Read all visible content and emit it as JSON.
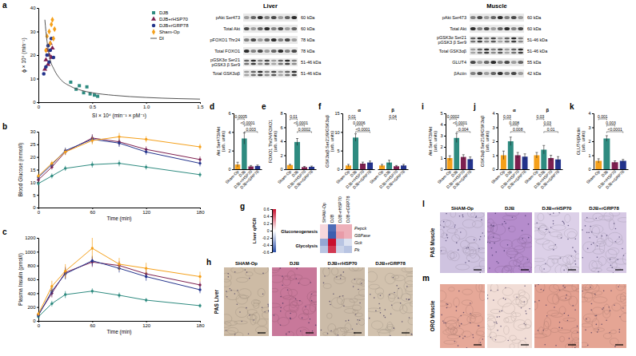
{
  "chart_data": [
    {
      "panel": "a",
      "type": "scatter",
      "x_label": "SI × 10⁴ (min⁻¹ × pM⁻¹)",
      "y_label": "ϕ × 10⁹ (min⁻¹)",
      "xlim": [
        0,
        1.5
      ],
      "xticks": [
        0,
        0.5,
        {
          "value": 1,
          "label": "1.0"
        },
        1.5
      ],
      "ylim": [
        0,
        40
      ],
      "yticks": [
        0,
        10,
        20,
        30,
        40
      ],
      "legend": "top-right",
      "series": [
        {
          "name": "DJB",
          "color": "#2e8b80",
          "marker": "square",
          "x": [
            0.3,
            0.35,
            0.38,
            0.42,
            0.45,
            0.48,
            0.52,
            0.55
          ],
          "values": [
            8.5,
            5.5,
            7,
            4,
            6.5,
            3.5,
            3,
            2.5
          ]
        },
        {
          "name": "DJB+rHSP70",
          "color": "#7d1f4f",
          "marker": "triangle",
          "x": [
            0.06,
            0.07,
            0.08,
            0.09,
            0.1,
            0.11,
            0.12,
            0.13
          ],
          "values": [
            14,
            18,
            22,
            16,
            20,
            25,
            19,
            23
          ]
        },
        {
          "name": "DJB+rGRP78",
          "color": "#23338c",
          "marker": "circle",
          "x": [
            0.05,
            0.07,
            0.08,
            0.09,
            0.1,
            0.11,
            0.12,
            0.14
          ],
          "values": [
            12,
            15,
            20,
            24,
            17,
            22,
            27,
            19
          ]
        },
        {
          "name": "Sham-Op",
          "color": "#f5a01a",
          "marker": "diamond",
          "x": [
            0.07,
            0.08,
            0.1,
            0.11,
            0.12,
            0.13,
            0.14,
            0.15
          ],
          "values": [
            22,
            28,
            30,
            25,
            33,
            35,
            27,
            31
          ]
        },
        {
          "name": "DI",
          "type": "line",
          "color": "#555555",
          "x": [
            0.06,
            0.07,
            0.1,
            0.15,
            0.2,
            0.3,
            0.4,
            0.5,
            0.7,
            1.0,
            1.3,
            1.5
          ],
          "values": [
            35,
            30,
            20,
            13.5,
            10,
            6.7,
            5,
            4,
            2.9,
            2,
            1.5,
            1.3
          ]
        }
      ]
    },
    {
      "panel": "b",
      "type": "line",
      "x_label": "Time (min)",
      "y_label": "Blood Glucose (mmol/l)",
      "x": [
        0,
        15,
        30,
        60,
        90,
        120,
        180
      ],
      "xlim": [
        0,
        180
      ],
      "xticks": [
        0,
        60,
        120,
        180
      ],
      "ylim": [
        0,
        30
      ],
      "yticks": [
        0,
        5,
        10,
        15,
        20,
        25,
        30
      ],
      "marker": "circle",
      "series": [
        {
          "color": "#2e8b80",
          "values": [
            9.5,
            12.5,
            15.5,
            17,
            17.5,
            16,
            13
          ],
          "errors": [
            0.8,
            1,
            1,
            1.2,
            1.2,
            1,
            1
          ]
        },
        {
          "color": "#7d1f4f",
          "values": [
            11,
            16,
            22,
            27.5,
            26,
            23,
            19
          ],
          "errors": [
            1,
            1,
            1.2,
            1.5,
            1.5,
            1.2,
            1.2
          ]
        },
        {
          "color": "#23338c",
          "values": [
            12,
            17,
            22.5,
            27,
            25.5,
            22,
            17.5
          ],
          "errors": [
            1,
            1,
            1.2,
            1.5,
            1.5,
            1.2,
            1.2
          ]
        },
        {
          "color": "#f5a01a",
          "values": [
            12.5,
            17.5,
            22,
            26.5,
            28,
            27,
            24
          ],
          "errors": [
            1,
            1,
            1.2,
            1.5,
            1.5,
            1.2,
            1.2
          ]
        }
      ]
    },
    {
      "panel": "c",
      "type": "line",
      "x_label": "Time (min)",
      "y_label": "Plasma Insulin (pmol/l)",
      "x": [
        0,
        15,
        30,
        60,
        90,
        120,
        180
      ],
      "xlim": [
        0,
        180
      ],
      "xticks": [
        0,
        60,
        120,
        180
      ],
      "ylim": [
        0,
        1200
      ],
      "yticks": [
        0,
        200,
        400,
        600,
        800,
        1000,
        1200
      ],
      "marker": "circle",
      "series": [
        {
          "color": "#2e8b80",
          "values": [
            60,
            250,
            380,
            430,
            370,
            300,
            220
          ],
          "errors": [
            20,
            40,
            50,
            40,
            40,
            30,
            30
          ]
        },
        {
          "color": "#7d1f4f",
          "values": [
            90,
            400,
            700,
            850,
            800,
            680,
            520
          ],
          "errors": [
            30,
            60,
            80,
            70,
            60,
            60,
            50
          ]
        },
        {
          "color": "#23338c",
          "values": [
            80,
            430,
            680,
            870,
            760,
            640,
            450
          ],
          "errors": [
            30,
            60,
            80,
            70,
            60,
            60,
            50
          ]
        },
        {
          "color": "#f5a01a",
          "values": [
            100,
            500,
            720,
            1050,
            820,
            760,
            640
          ],
          "errors": [
            30,
            80,
            100,
            150,
            90,
            80,
            70
          ]
        }
      ]
    },
    {
      "panel": "d",
      "type": "bar",
      "y_label": [
        "Akt Ser473/Akt",
        "(arb. units)"
      ],
      "categories": [
        "Sham-Op",
        "DJB",
        "DJB+rHSP70",
        "DJB+rGRP78"
      ],
      "colors": [
        "#f5a01a",
        "#2e8b80",
        "#7d1f4f",
        "#23338c"
      ],
      "ylim": [
        0,
        6
      ],
      "yticks": [
        0,
        2,
        4,
        6
      ],
      "series": [
        {
          "values": [
            0.5,
            3.3,
            0.3,
            0.35
          ],
          "errors": [
            0.25,
            0.6,
            0.1,
            0.1
          ]
        }
      ],
      "annotations": [
        {
          "series": 0,
          "pair": [
            0,
            1
          ],
          "label": "0.0005"
        },
        {
          "series": 0,
          "pair": [
            1,
            2
          ],
          "label": "<0.0001"
        },
        {
          "series": 0,
          "pair": [
            1,
            3
          ],
          "label": "0.003"
        }
      ]
    },
    {
      "panel": "e",
      "type": "bar",
      "y_label": [
        "FOXO1 Thr24/FOXO1",
        "(arb. units)"
      ],
      "categories": [
        "Sham-Op",
        "DJB",
        "DJB+rHSP70",
        "DJB+rGRP78"
      ],
      "colors": [
        "#f5a01a",
        "#2e8b80",
        "#7d1f4f",
        "#23338c"
      ],
      "ylim": [
        0,
        8
      ],
      "yticks": [
        0,
        2,
        4,
        6,
        8
      ],
      "series": [
        {
          "values": [
            0.6,
            3.9,
            0.3,
            0.35
          ],
          "errors": [
            0.1,
            0.5,
            0.1,
            0.1
          ]
        }
      ],
      "annotations": [
        {
          "series": 0,
          "pair": [
            0,
            1
          ],
          "label": "0.01"
        },
        {
          "series": 0,
          "pair": [
            1,
            2
          ],
          "label": "<0.0001"
        },
        {
          "series": 0,
          "pair": [
            1,
            3
          ],
          "label": "0.0002"
        }
      ]
    },
    {
      "panel": "f",
      "type": "bar",
      "y_label": [
        "GSK3α/β Ser21/9/GSK3αβ",
        "(arb. units)"
      ],
      "categories": [
        "Sham-Op",
        "DJB",
        "DJB+rHSP70",
        "DJB+rGRP78"
      ],
      "colors": [
        "#f5a01a",
        "#2e8b80",
        "#7d1f4f",
        "#23338c"
      ],
      "ylim": [
        0,
        15
      ],
      "yticks": [
        0,
        5,
        10,
        15
      ],
      "series": [
        {
          "name": "α",
          "values": [
            1,
            8.5,
            1.5,
            1.8
          ],
          "errors": [
            0.3,
            1,
            0.4,
            0.4
          ]
        },
        {
          "name": "β",
          "values": [
            1,
            1.8,
            0.8,
            1
          ],
          "errors": [
            0.3,
            0.6,
            0.2,
            0.3
          ]
        }
      ],
      "annotations": [
        {
          "series": 0,
          "pair": [
            0,
            1
          ],
          "label": "0.01"
        },
        {
          "series": 0,
          "pair": [
            1,
            2
          ],
          "label": "0.0006"
        },
        {
          "series": 0,
          "pair": [
            1,
            3
          ],
          "label": "<0.0001"
        },
        {
          "series": 1,
          "pair": [
            1,
            2
          ],
          "label": "0.04"
        }
      ]
    },
    {
      "panel": "i",
      "type": "bar",
      "y_label": [
        "Akt Ser473/Akt",
        "(arb. units)"
      ],
      "categories": [
        "Sham-Op",
        "DJB",
        "DJB+rHSP70",
        "DJB+rGRP78"
      ],
      "colors": [
        "#f5a01a",
        "#2e8b80",
        "#7d1f4f",
        "#23338c"
      ],
      "ylim": [
        0,
        5
      ],
      "yticks": [
        0,
        1,
        2,
        3,
        4,
        5
      ],
      "series": [
        {
          "values": [
            1,
            2.8,
            1.1,
            0.9
          ],
          "errors": [
            0.2,
            0.4,
            0.2,
            0.2
          ]
        }
      ],
      "annotations": [
        {
          "series": 0,
          "pair": [
            0,
            1
          ],
          "label": "0.0002"
        },
        {
          "series": 0,
          "pair": [
            1,
            2
          ],
          "label": "<0.0001"
        },
        {
          "series": 0,
          "pair": [
            1,
            3
          ],
          "label": "0.004"
        }
      ]
    },
    {
      "panel": "j",
      "type": "bar",
      "y_label": [
        "GSK3αβ Ser21/9/GSK3αβ",
        "(arb. units)"
      ],
      "categories": [
        "Sham-Op",
        "DJB",
        "DJB+rHSP70",
        "DJB+rGRP78"
      ],
      "colors": [
        "#f5a01a",
        "#2e8b80",
        "#7d1f4f",
        "#23338c"
      ],
      "ylim": [
        0,
        4
      ],
      "yticks": [
        0,
        1,
        2,
        3,
        4
      ],
      "series": [
        {
          "name": "α",
          "values": [
            1,
            2,
            1,
            0.9
          ],
          "errors": [
            0.3,
            0.3,
            0.2,
            0.2
          ]
        },
        {
          "name": "β",
          "values": [
            1,
            1.4,
            0.8,
            0.7
          ],
          "errors": [
            0.2,
            0.3,
            0.2,
            0.2
          ]
        }
      ],
      "annotations": [
        {
          "series": 0,
          "pair": [
            0,
            1
          ],
          "label": "0.03"
        },
        {
          "series": 0,
          "pair": [
            1,
            2
          ],
          "label": "0.008"
        },
        {
          "series": 0,
          "pair": [
            1,
            3
          ],
          "label": "0.008"
        },
        {
          "series": 1,
          "pair": [
            0,
            1
          ],
          "label": "0.03"
        },
        {
          "series": 1,
          "pair": [
            1,
            2
          ],
          "label": "0.03"
        },
        {
          "series": 1,
          "pair": [
            1,
            3
          ],
          "label": "0.01"
        }
      ]
    },
    {
      "panel": "k",
      "type": "bar",
      "y_label": [
        "GLUT4/βActin",
        "(arb. units)"
      ],
      "categories": [
        "Sham-Op",
        "DJB",
        "DJB+rHSP70",
        "DJB+rGRP78"
      ],
      "colors": [
        "#f5a01a",
        "#2e8b80",
        "#7d1f4f",
        "#23338c"
      ],
      "ylim": [
        0,
        4
      ],
      "yticks": [
        0,
        1,
        2,
        3,
        4
      ],
      "series": [
        {
          "values": [
            0.6,
            2.2,
            0.5,
            0.6
          ],
          "errors": [
            0.15,
            0.2,
            0.1,
            0.1
          ]
        }
      ],
      "annotations": [
        {
          "series": 0,
          "pair": [
            0,
            1
          ],
          "label": "0.001"
        },
        {
          "series": 0,
          "pair": [
            1,
            2
          ],
          "label": "0.003"
        },
        {
          "series": 0,
          "pair": [
            1,
            3
          ],
          "label": "<0.0001"
        }
      ]
    },
    {
      "panel": "g",
      "type": "heatmap",
      "title": "Liver qPCR",
      "columns": [
        "SHAM-Op",
        "DJB",
        "DJB+rHSP70",
        "DJB+rGRP78"
      ],
      "rows": [
        "Pepck",
        "G6Pase",
        "Gck",
        "Pk"
      ],
      "row_groups": [
        "Gluconeogenesis",
        "Gluconeogenesis",
        "Glycolysis",
        "Glycolysis"
      ],
      "values": [
        [
          0.1,
          -0.5,
          0.2,
          0.2
        ],
        [
          0.1,
          -0.55,
          0.25,
          0.2
        ],
        [
          -0.3,
          0.6,
          -0.2,
          -0.1
        ],
        [
          -0.2,
          0.5,
          -0.15,
          -0.2
        ]
      ],
      "colorbar": {
        "range": [
          -0.6,
          0.6
        ],
        "ticks": [
          -0.6,
          -0.4,
          -0.2,
          0,
          0.2,
          0.4,
          0.6
        ],
        "colors": [
          "#2b4fa8",
          "#ffffff",
          "#c8102e"
        ]
      }
    }
  ],
  "blots": [
    {
      "title": "Liver",
      "rows": [
        {
          "label": [
            "pAkt Ser473"
          ],
          "size": "60 kDa"
        },
        {
          "label": [
            "Total Akt"
          ],
          "size": "60 kDa"
        },
        {
          "label": [
            "pFOXO1 Thr24"
          ],
          "size": "78 kDa"
        },
        {
          "label": [
            "Total FOXO1"
          ],
          "size": "78 kDa"
        },
        {
          "label": [
            "pGSK3α Ser21",
            "pGSK3 β Ser9"
          ],
          "size": "51-46 kDa"
        },
        {
          "label": [
            "Total GSK3αβ"
          ],
          "size": "51-46 kDa"
        }
      ]
    },
    {
      "title": "Muscle",
      "rows": [
        {
          "label": [
            "pAkt Ser473"
          ],
          "size": "60 kDa"
        },
        {
          "label": [
            "Total Akt"
          ],
          "size": "60 kDa"
        },
        {
          "label": [
            "pGSK3α Ser21",
            "pGSK3 β Ser9"
          ],
          "size": "51-46 kDa"
        },
        {
          "label": [
            "Total GSK3αβ"
          ],
          "size": "51-46 kDa"
        },
        {
          "label": [
            "GLUT4"
          ],
          "size": "55 kDa"
        },
        {
          "label": [
            "βActin"
          ],
          "size": "42 kDa"
        }
      ]
    }
  ],
  "micrographs": [
    {
      "panel": "h",
      "label": "PAS Liver",
      "titles": [
        "SHAM-Op",
        "DJB",
        "DJB+rHSP70",
        "DJB+rGRP78"
      ],
      "colors": [
        "#cdbba5",
        "#c8789a",
        "#cbbba8",
        "#d2c2ae"
      ]
    },
    {
      "panel": "l",
      "label": "PAS Muscle",
      "titles": [
        "SHAM-Op",
        "DJB",
        "DJB+rHSP70",
        "DJB+rGRP78"
      ],
      "colors": [
        "#cfc3e0",
        "#b58ccc",
        "#dcd0e8",
        "#d6c8e4"
      ]
    },
    {
      "panel": "m",
      "label": "ORO Muscle",
      "colors": [
        "#e6a898",
        "#f1ddd6",
        "#e3a090",
        "#e5a594"
      ]
    }
  ]
}
